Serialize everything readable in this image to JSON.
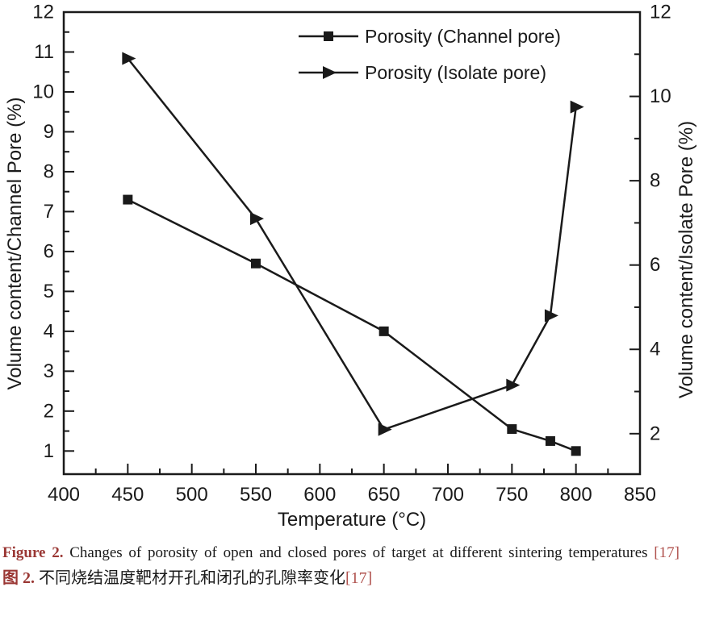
{
  "page": {
    "background": "#ffffff"
  },
  "chart_data": {
    "type": "line",
    "title": "",
    "xlabel": "Temperature (°C)",
    "ylabel_left": "Volume content/Channel Pore (%)",
    "ylabel_right": "Volume content/Isolate Pore (%)",
    "xlim": [
      400,
      850
    ],
    "x_major_ticks": [
      400,
      450,
      500,
      550,
      600,
      650,
      700,
      750,
      800,
      850
    ],
    "x_minor_step": 25,
    "ylim_left": [
      0.42,
      12
    ],
    "y_major_ticks_left": [
      1,
      2,
      3,
      4,
      5,
      6,
      7,
      8,
      9,
      10,
      11,
      12
    ],
    "y_minor_step_left": 0.5,
    "ylim_right": [
      1.04,
      12
    ],
    "y_major_ticks_right": [
      2,
      4,
      6,
      8,
      10,
      12
    ],
    "y_minor_step_right": 1,
    "grid": false,
    "legend_position": "top-center-inside",
    "line_color": "#1a1a1a",
    "series": [
      {
        "name": "Porosity (Channel pore)",
        "axis": "left",
        "marker": "square",
        "x": [
          450,
          550,
          650,
          750,
          780,
          800
        ],
        "y": [
          7.3,
          5.7,
          4.0,
          1.55,
          1.25,
          1.0
        ]
      },
      {
        "name": "Porosity (Isolate pore)",
        "axis": "right",
        "marker": "triangle-right",
        "x": [
          450,
          550,
          650,
          750,
          780,
          800
        ],
        "y": [
          10.9,
          7.1,
          2.1,
          3.15,
          4.8,
          9.75
        ]
      }
    ]
  },
  "caption": {
    "en_label": "Figure 2.",
    "en_text": "Changes of porosity of open and closed pores of target at different sintering temperatures ",
    "en_ref": "[17]",
    "zh_label": "图 2.",
    "zh_text": "不同烧结温度靶材开孔和闭孔的孔隙率变化",
    "zh_ref": "[17]",
    "label_color": "#9a3734",
    "ref_color": "#b0524e"
  }
}
